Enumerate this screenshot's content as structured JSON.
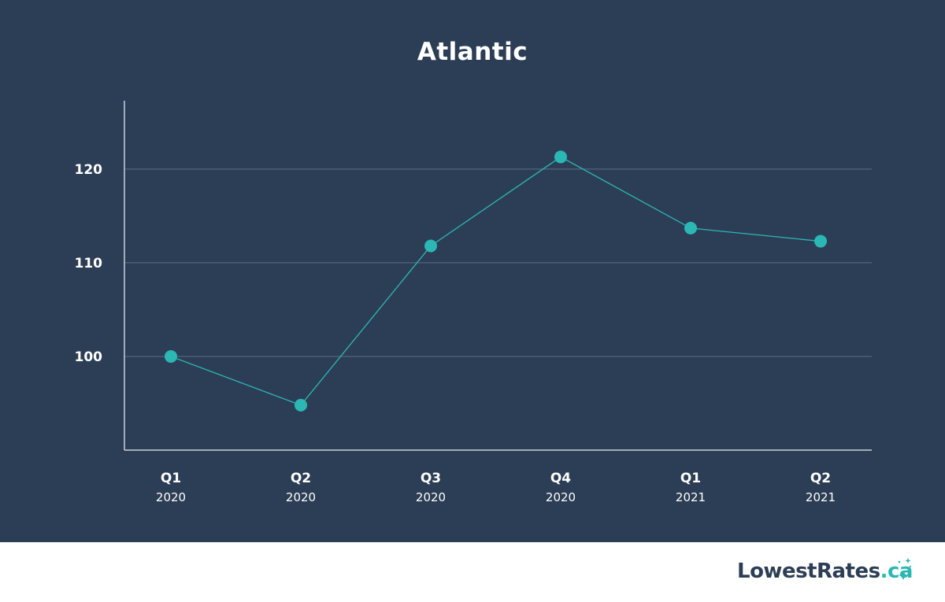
{
  "chart_data": {
    "type": "line",
    "title": "Atlantic",
    "xlabel": "",
    "ylabel": "",
    "categories": [
      {
        "q": "Q1",
        "year": "2020"
      },
      {
        "q": "Q2",
        "year": "2020"
      },
      {
        "q": "Q3",
        "year": "2020"
      },
      {
        "q": "Q4",
        "year": "2020"
      },
      {
        "q": "Q1",
        "year": "2021"
      },
      {
        "q": "Q2",
        "year": "2021"
      }
    ],
    "series": [
      {
        "values": [
          100.0,
          94.8,
          111.8,
          121.3,
          113.7,
          112.3
        ]
      }
    ],
    "ylim": [
      90,
      127.3
    ],
    "yticks": [
      100,
      110,
      120
    ],
    "grid": true,
    "legend": "none",
    "colors": {
      "background": "#2c3e55",
      "line": "#2bb7b3",
      "marker": "#2bb7b3",
      "grid": "#5d6f83",
      "axis": "#c9d1da",
      "text": "#ffffff"
    }
  },
  "brand": {
    "name": "LowestRates",
    "tld": ".ca",
    "colors": {
      "name": "#2c3e55",
      "tld": "#2bb7b3"
    }
  }
}
